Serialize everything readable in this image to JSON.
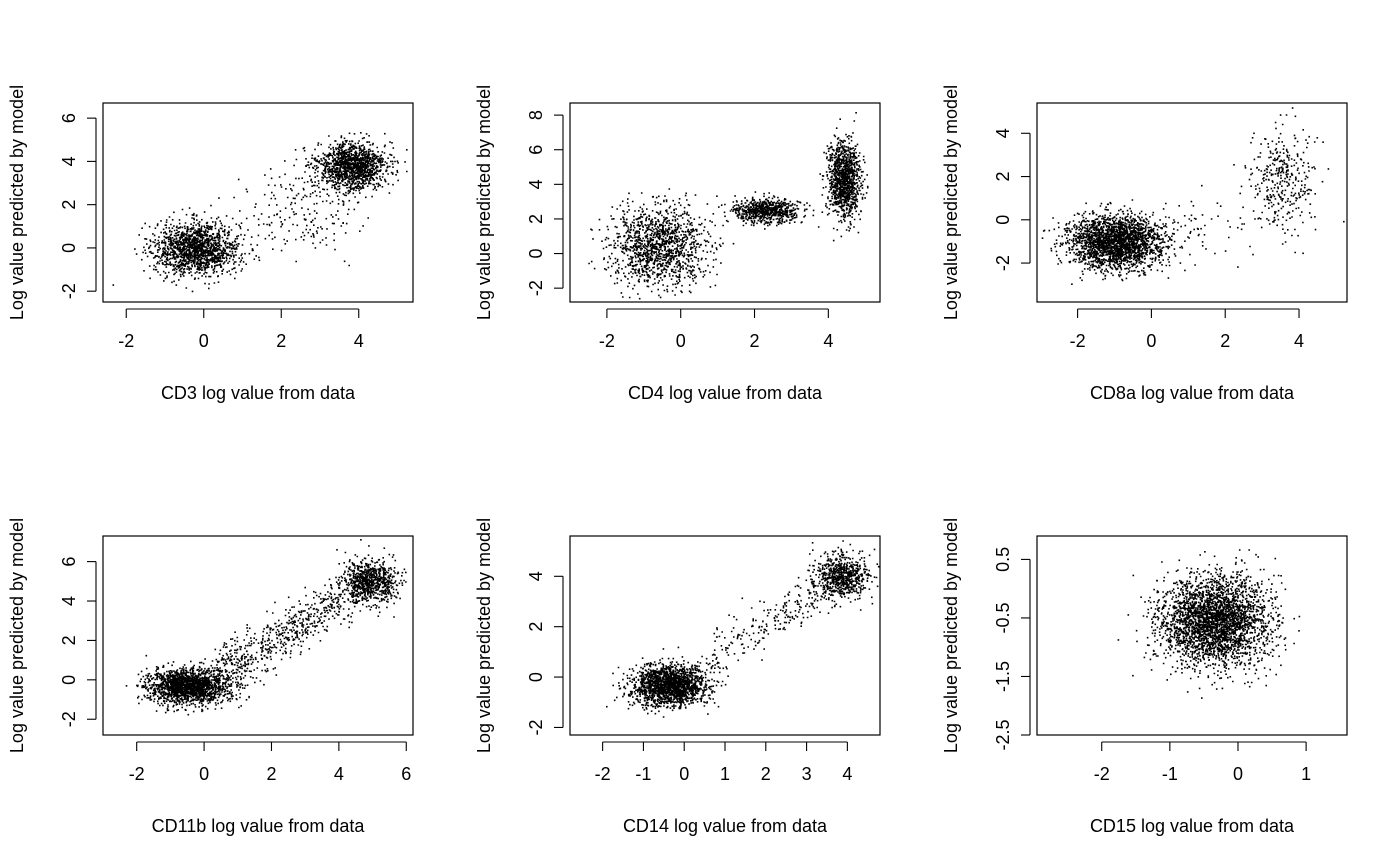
{
  "colors": {
    "points": "#000000",
    "axes": "#000000",
    "background": "#ffffff"
  },
  "chart_data": [
    {
      "type": "scatter",
      "xlabel": "CD3 log value from data",
      "ylabel": "Log value predicted by model",
      "xlim": [
        -2.6,
        5.4
      ],
      "ylim": [
        -2.5,
        6.7
      ],
      "xticks": [
        "-2",
        "0",
        "2",
        "4"
      ],
      "xtick_values": [
        -2,
        0,
        2,
        4
      ],
      "yticks": [
        "-2",
        "0",
        "2",
        "4",
        "6"
      ],
      "ytick_values": [
        -2,
        0,
        2,
        4,
        6
      ],
      "clusters": [
        {
          "center": [
            -0.2,
            0.0
          ],
          "spread": [
            0.55,
            0.6
          ],
          "n": 1500
        },
        {
          "center": [
            3.8,
            3.8
          ],
          "spread": [
            0.45,
            0.55
          ],
          "n": 1300
        },
        {
          "center": [
            2.6,
            1.8
          ],
          "spread": [
            0.8,
            1.1
          ],
          "n": 200
        }
      ]
    },
    {
      "type": "scatter",
      "xlabel": "CD4 log value from data",
      "ylabel": "Log value predicted by model",
      "xlim": [
        -3.0,
        5.4
      ],
      "ylim": [
        -2.8,
        8.7
      ],
      "xticks": [
        "-2",
        "0",
        "2",
        "4"
      ],
      "xtick_values": [
        -2,
        0,
        2,
        4
      ],
      "yticks": [
        "-2",
        "0",
        "2",
        "4",
        "6",
        "8"
      ],
      "ytick_values": [
        -2,
        0,
        2,
        4,
        6,
        8
      ],
      "clusters": [
        {
          "center": [
            -0.6,
            0.5
          ],
          "spread": [
            0.65,
            1.1
          ],
          "n": 1300
        },
        {
          "center": [
            2.3,
            2.5
          ],
          "spread": [
            0.45,
            0.35
          ],
          "n": 700
        },
        {
          "center": [
            4.4,
            4.3
          ],
          "spread": [
            0.22,
            1.1
          ],
          "n": 1100
        }
      ]
    },
    {
      "type": "scatter",
      "xlabel": "CD8a log value from data",
      "ylabel": "Log value predicted by model",
      "xlim": [
        -3.1,
        5.3
      ],
      "ylim": [
        -3.8,
        5.4
      ],
      "xticks": [
        "-2",
        "0",
        "2",
        "4"
      ],
      "xtick_values": [
        -2,
        0,
        2,
        4
      ],
      "yticks": [
        "-2",
        "0",
        "2",
        "4"
      ],
      "ytick_values": [
        -2,
        0,
        2,
        4
      ],
      "clusters": [
        {
          "center": [
            -1.0,
            -1.0
          ],
          "spread": [
            0.65,
            0.6
          ],
          "n": 2300
        },
        {
          "center": [
            3.5,
            1.8
          ],
          "spread": [
            0.45,
            1.2
          ],
          "n": 350
        },
        {
          "center": [
            1.2,
            -0.5
          ],
          "spread": [
            0.8,
            0.7
          ],
          "n": 60
        }
      ]
    },
    {
      "type": "scatter",
      "xlabel": "CD11b log value from data",
      "ylabel": "Log value predicted by model",
      "xlim": [
        -3.0,
        6.2
      ],
      "ylim": [
        -2.8,
        7.3
      ],
      "xticks": [
        "-2",
        "0",
        "2",
        "4",
        "6"
      ],
      "xtick_values": [
        -2,
        0,
        2,
        4,
        6
      ],
      "yticks": [
        "-2",
        "0",
        "2",
        "4",
        "6"
      ],
      "ytick_values": [
        -2,
        0,
        2,
        4,
        6
      ],
      "clusters": [
        {
          "center": [
            -0.5,
            -0.3
          ],
          "spread": [
            0.6,
            0.45
          ],
          "n": 1800
        },
        {
          "center": [
            4.9,
            5.0
          ],
          "spread": [
            0.4,
            0.55
          ],
          "n": 800
        }
      ],
      "trend": {
        "from": [
          0.3,
          0.3
        ],
        "to": [
          4.2,
          4.2
        ],
        "spread": 0.6,
        "n": 600
      }
    },
    {
      "type": "scatter",
      "xlabel": "CD14 log value from data",
      "ylabel": "Log value predicted by model",
      "xlim": [
        -2.8,
        4.8
      ],
      "ylim": [
        -2.3,
        5.6
      ],
      "xticks": [
        "-2",
        "-1",
        "0",
        "1",
        "2",
        "3",
        "4"
      ],
      "xtick_values": [
        -2,
        -1,
        0,
        1,
        2,
        3,
        4
      ],
      "yticks": [
        "-2",
        "0",
        "2",
        "4"
      ],
      "ytick_values": [
        -2,
        0,
        2,
        4
      ],
      "clusters": [
        {
          "center": [
            -0.4,
            -0.3
          ],
          "spread": [
            0.45,
            0.4
          ],
          "n": 1800
        },
        {
          "center": [
            3.8,
            4.0
          ],
          "spread": [
            0.35,
            0.45
          ],
          "n": 700
        }
      ],
      "trend": {
        "from": [
          0.6,
          0.8
        ],
        "to": [
          3.2,
          3.2
        ],
        "spread": 0.4,
        "n": 200
      }
    },
    {
      "type": "scatter",
      "xlabel": "CD15 log value from data",
      "ylabel": "Log value predicted by model",
      "xlim": [
        -2.95,
        1.6
      ],
      "ylim": [
        -2.5,
        0.9
      ],
      "xticks": [
        "-2",
        "-1",
        "0",
        "1"
      ],
      "xtick_values": [
        -2,
        -1,
        0,
        1
      ],
      "yticks": [
        "-2.5",
        "-1.5",
        "-0.5",
        "0.5"
      ],
      "ytick_values": [
        -2.5,
        -1.5,
        -0.5,
        0.5
      ],
      "clusters": [
        {
          "center": [
            -0.35,
            -0.55
          ],
          "spread": [
            0.4,
            0.38
          ],
          "n": 3000
        }
      ]
    }
  ]
}
